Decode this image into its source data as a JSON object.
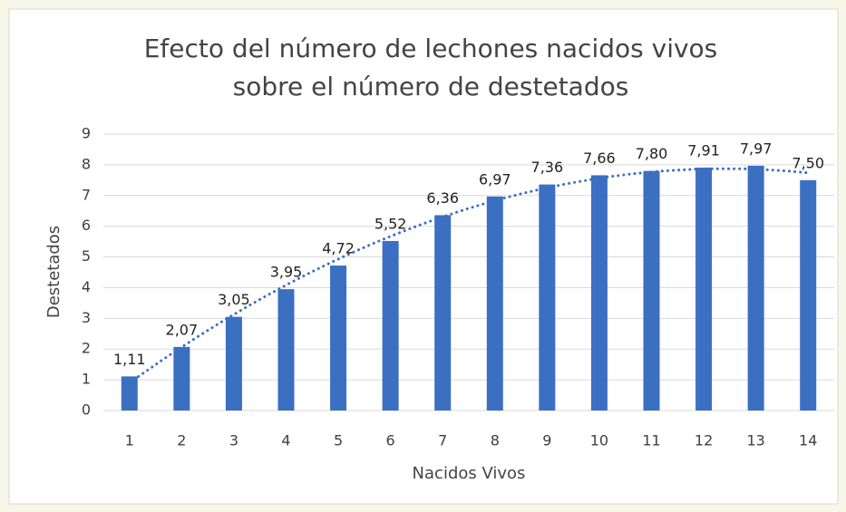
{
  "chart_data": {
    "type": "bar",
    "title": [
      "Efecto del número de lechones nacidos vivos",
      "sobre el número de destetados"
    ],
    "x_label": "Nacidos Vivos",
    "y_label": "Destetados",
    "categories": [
      1,
      2,
      3,
      4,
      5,
      6,
      7,
      8,
      9,
      10,
      11,
      12,
      13,
      14
    ],
    "values": [
      1.11,
      2.07,
      3.05,
      3.95,
      4.72,
      5.52,
      6.36,
      6.97,
      7.36,
      7.66,
      7.8,
      7.91,
      7.97,
      7.5
    ],
    "value_labels": [
      "1,11",
      "2,07",
      "3,05",
      "3,95",
      "4,72",
      "5,52",
      "6,36",
      "6,97",
      "7,36",
      "7,66",
      "7,80",
      "7,91",
      "7,97",
      "7,50"
    ],
    "color": "#3b6fc2",
    "trendline": "polynomial",
    "ylim": [
      0,
      9
    ],
    "yticks": [
      0,
      1,
      2,
      3,
      4,
      5,
      6,
      7,
      8,
      9
    ],
    "grid": true
  }
}
